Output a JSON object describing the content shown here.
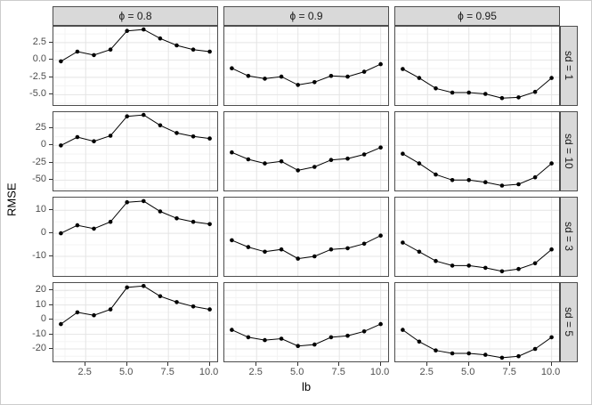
{
  "chart_data": {
    "type": "line",
    "title": "",
    "xlabel": "lb",
    "ylabel": "RMSE",
    "legend": "none",
    "grid": true,
    "x": [
      1,
      2,
      3,
      4,
      5,
      6,
      7,
      8,
      9,
      10
    ],
    "xlim": [
      0.55,
      10.45
    ],
    "x_ticks": [
      2.5,
      5,
      7.5,
      10
    ],
    "x_tick_labels": [
      "2.5",
      "5.0",
      "7.5",
      "10.0"
    ],
    "col_facets": [
      "ϕ = 0.8",
      "ϕ = 0.9",
      "ϕ = 0.95"
    ],
    "row_facets": [
      "sd = 1",
      "sd = 10",
      "sd = 3",
      "sd = 5"
    ],
    "rows": [
      {
        "label": "sd = 1",
        "ylim": [
          -6.5,
          4.8
        ],
        "yticks": [
          2.5,
          0,
          -2.5,
          -5
        ],
        "ytick_labels": [
          "2.5",
          "0.0",
          "-2.5",
          "-5.0"
        ],
        "series": [
          {
            "name": "ϕ = 0.8",
            "values": [
              -0.2,
              1.2,
              0.7,
              1.5,
              4.2,
              4.4,
              3.1,
              2.1,
              1.5,
              1.2
            ]
          },
          {
            "name": "ϕ = 0.9",
            "values": [
              -1.2,
              -2.3,
              -2.7,
              -2.4,
              -3.6,
              -3.2,
              -2.3,
              -2.4,
              -1.7,
              -0.6
            ]
          },
          {
            "name": "ϕ = 0.95",
            "values": [
              -1.3,
              -2.6,
              -4.1,
              -4.7,
              -4.7,
              -4.9,
              -5.5,
              -5.4,
              -4.6,
              -2.6
            ]
          }
        ]
      },
      {
        "label": "sd = 10",
        "ylim": [
          -65,
          48
        ],
        "yticks": [
          25,
          0,
          -25,
          -50
        ],
        "ytick_labels": [
          "25",
          "0",
          "-25",
          "-50"
        ],
        "series": [
          {
            "name": "ϕ = 0.8",
            "values": [
              0,
              12,
              6,
              14,
              42,
              44,
              29,
              18,
              13,
              10
            ]
          },
          {
            "name": "ϕ = 0.9",
            "values": [
              -10,
              -20,
              -26,
              -23,
              -36,
              -31,
              -21,
              -19,
              -13,
              -3
            ]
          },
          {
            "name": "ϕ = 0.95",
            "values": [
              -12,
              -26,
              -42,
              -50,
              -50,
              -53,
              -58,
              -56,
              -46,
              -26
            ]
          }
        ]
      },
      {
        "label": "sd = 3",
        "ylim": [
          -18.5,
          15.5
        ],
        "yticks": [
          10,
          0,
          -10
        ],
        "ytick_labels": [
          "10",
          "0",
          "-10"
        ],
        "series": [
          {
            "name": "ϕ = 0.8",
            "values": [
              0,
              3.5,
              2,
              5,
              13.5,
              14,
              9.5,
              6.5,
              5,
              4
            ]
          },
          {
            "name": "ϕ = 0.9",
            "values": [
              -3,
              -6,
              -8,
              -7,
              -11,
              -10,
              -7,
              -6.5,
              -4.5,
              -1
            ]
          },
          {
            "name": "ϕ = 0.95",
            "values": [
              -4,
              -8,
              -12,
              -14,
              -14,
              -15,
              -16.5,
              -15.5,
              -13,
              -7
            ]
          }
        ]
      },
      {
        "label": "sd = 5",
        "ylim": [
          -28.5,
          25
        ],
        "yticks": [
          20,
          10,
          0,
          -10,
          -20
        ],
        "ytick_labels": [
          "20",
          "10",
          "0",
          "-10",
          "-20"
        ],
        "series": [
          {
            "name": "ϕ = 0.8",
            "values": [
              -3,
              5,
              3,
              7,
              22,
              23,
              16,
              12,
              9,
              7
            ]
          },
          {
            "name": "ϕ = 0.9",
            "values": [
              -7,
              -12,
              -14,
              -13,
              -18,
              -17,
              -12,
              -11,
              -8,
              -3
            ]
          },
          {
            "name": "ϕ = 0.95",
            "values": [
              -7,
              -15,
              -21,
              -23,
              -23,
              -24,
              -26,
              -25,
              -20,
              -12
            ]
          }
        ]
      }
    ],
    "style": {
      "point_color": "#000000",
      "line_color": "#000000",
      "strip_bg": "#d9d9d9",
      "strip_border": "#4d4d4d",
      "panel_border": "#4d4d4d",
      "grid_major": "#e4e4e4",
      "grid_minor": "#f3f3f3",
      "tick_color": "#333333",
      "tick_label_color": "#4d4d4d"
    }
  }
}
